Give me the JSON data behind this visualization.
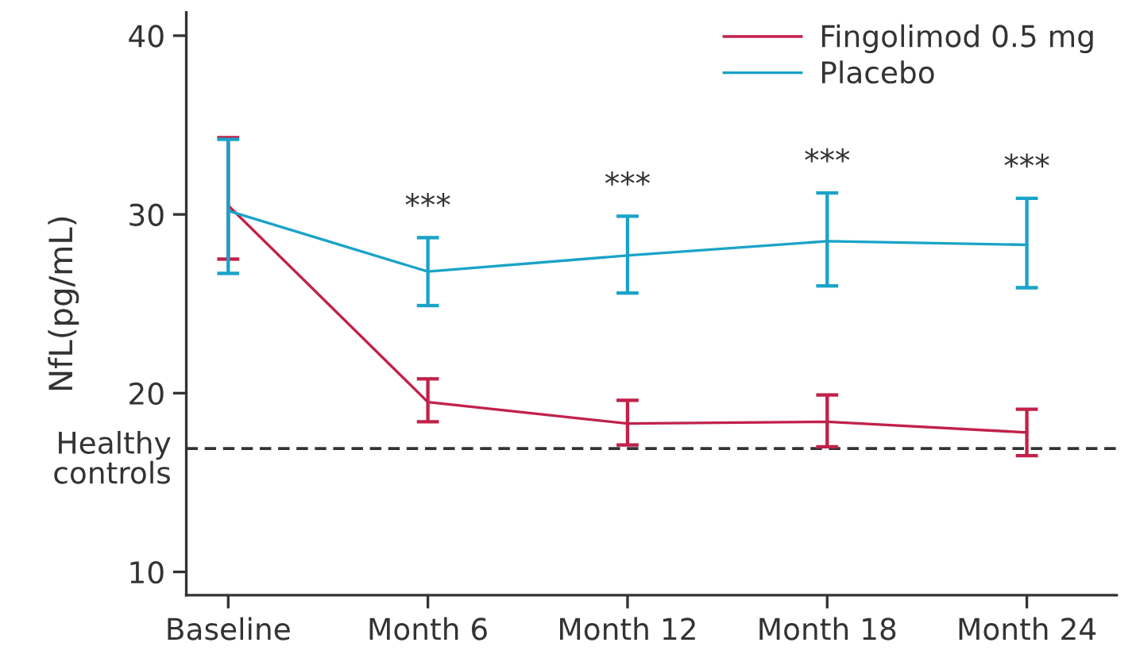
{
  "chart_data": {
    "type": "line",
    "ylabel": "NfL(pg/mL)",
    "categories": [
      "Baseline",
      "Month 6",
      "Month 12",
      "Month 18",
      "Month 24"
    ],
    "series": [
      {
        "name": "Fingolimod 0.5 mg",
        "color": "#c1214a",
        "values": [
          30.5,
          19.5,
          18.3,
          18.4,
          17.8
        ],
        "errors": [
          [
            27.5,
            34.3
          ],
          [
            18.4,
            20.8
          ],
          [
            17.1,
            19.6
          ],
          [
            17.0,
            19.9
          ],
          [
            16.5,
            19.1
          ]
        ]
      },
      {
        "name": "Placebo",
        "color": "#1aa3c8",
        "values": [
          30.2,
          26.8,
          27.7,
          28.5,
          28.3
        ],
        "errors": [
          [
            26.7,
            34.2
          ],
          [
            24.9,
            28.7
          ],
          [
            25.6,
            29.9
          ],
          [
            26.0,
            31.2
          ],
          [
            25.9,
            30.9
          ]
        ]
      }
    ],
    "ylim": [
      8.7,
      41.3
    ],
    "yticks": [
      10,
      20,
      30,
      40
    ],
    "ref_lines": [
      {
        "axis": "y",
        "value": 16.9,
        "label": "Healthy\ncontrols",
        "color": "#333333",
        "line_style": "dashed"
      }
    ],
    "annotations": [
      "***",
      "***",
      "***",
      "***"
    ],
    "legend": "top right",
    "grid": false,
    "marker": "none",
    "line_style": "solid"
  }
}
